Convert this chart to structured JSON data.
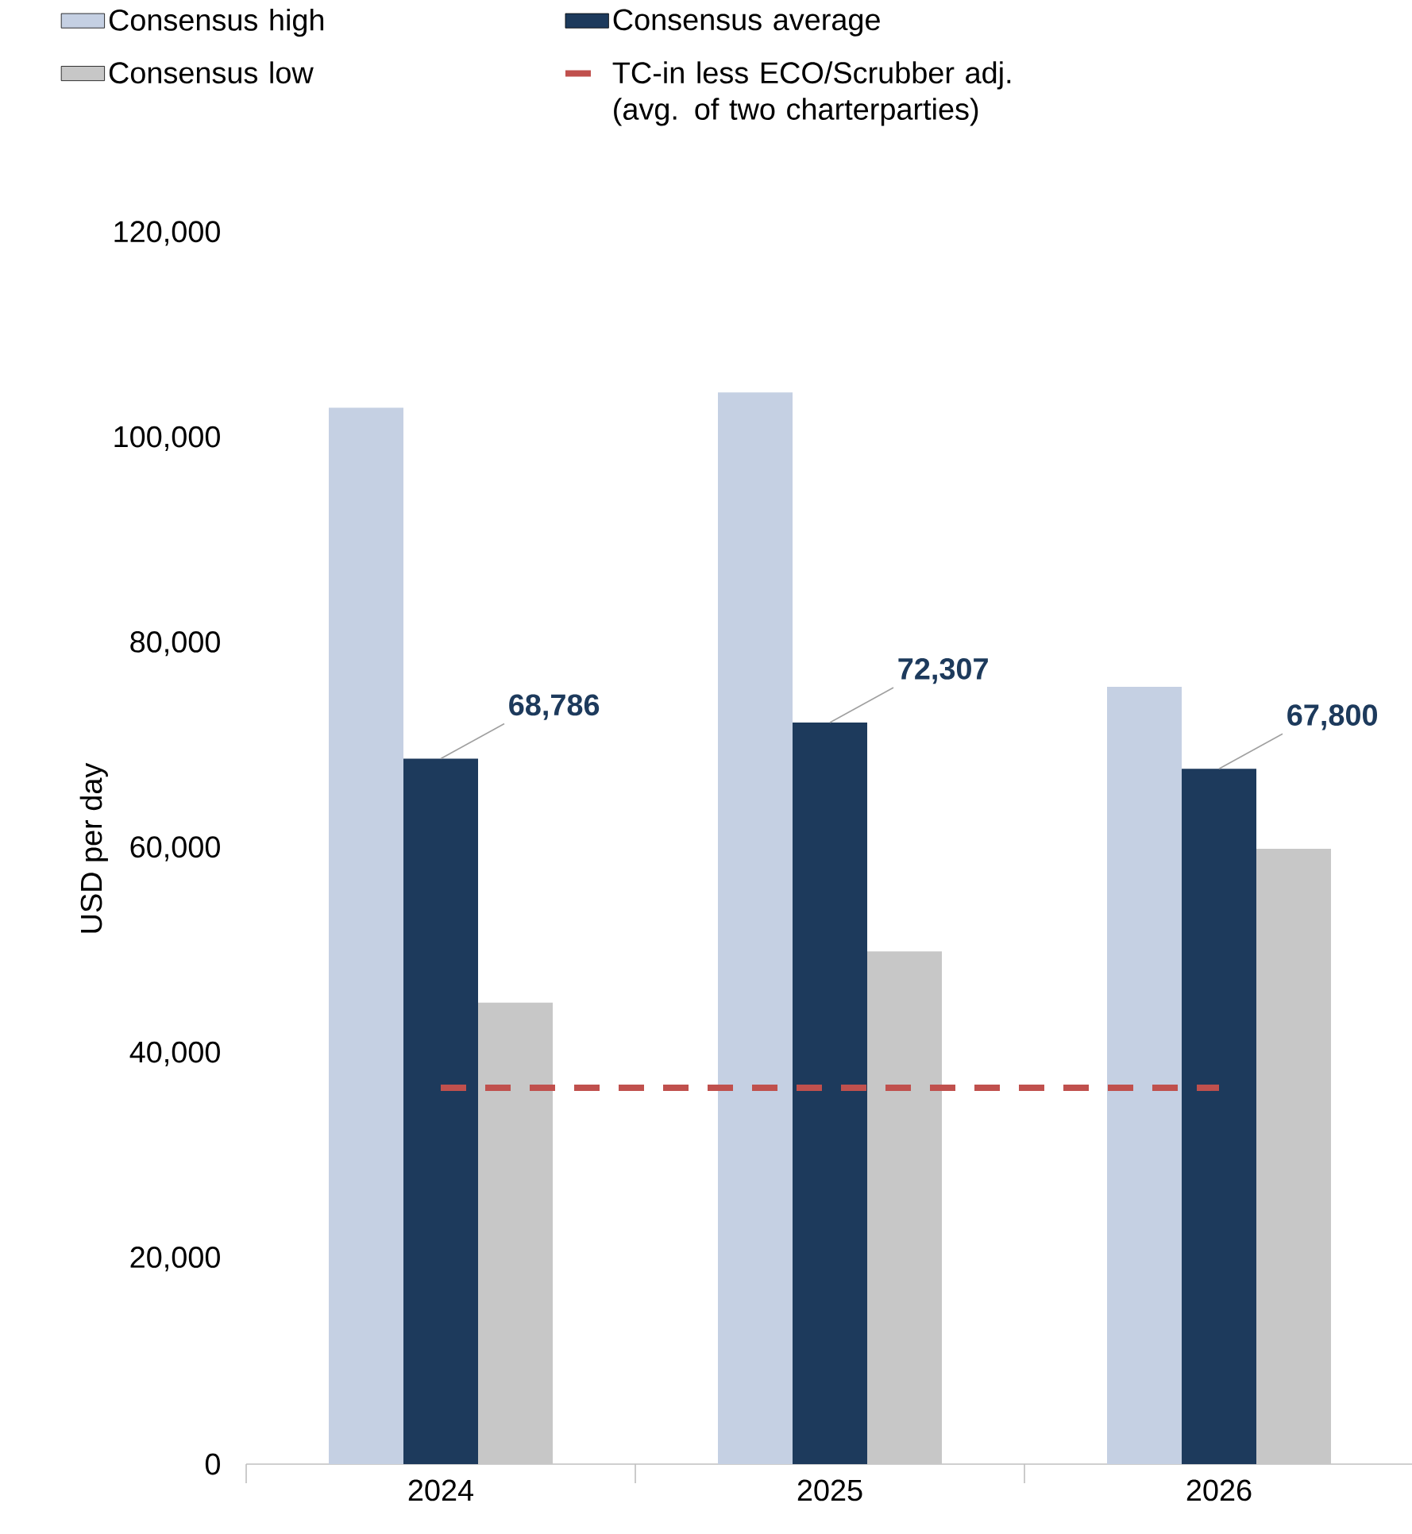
{
  "chart_data": {
    "type": "bar",
    "categories": [
      "2024",
      "2025",
      "2026"
    ],
    "ylabel": "USD per day",
    "ylim": [
      0,
      120000
    ],
    "yticks": [
      0,
      {
        "value": 20000,
        "label": "20,000"
      },
      {
        "value": 40000,
        "label": "40,000"
      },
      {
        "value": 60000,
        "label": "60,000"
      },
      {
        "value": 80000,
        "label": "80,000"
      },
      {
        "value": 100000,
        "label": "100,000"
      },
      {
        "value": 120000,
        "label": "120,000"
      }
    ],
    "legend": "top",
    "series": [
      {
        "name": "Consensus high",
        "color": "#c5d0e3",
        "values": [
          103000,
          104500,
          75800
        ]
      },
      {
        "name": "Consensus average",
        "color": "#1d3a5c",
        "values": [
          68786,
          72307,
          67800
        ],
        "value_labels": [
          "68,786",
          "72,307",
          "67,800"
        ]
      },
      {
        "name": "Consensus low",
        "color": "#c7c7c7",
        "values": [
          45000,
          50000,
          60000
        ]
      },
      {
        "name": "TC-in less ECO/Scrubber adj. (avg. of two charterparties)",
        "type": "line",
        "line_style": "dashed",
        "color": "#c0504d",
        "values": [
          36700,
          36700,
          36700
        ]
      }
    ]
  }
}
